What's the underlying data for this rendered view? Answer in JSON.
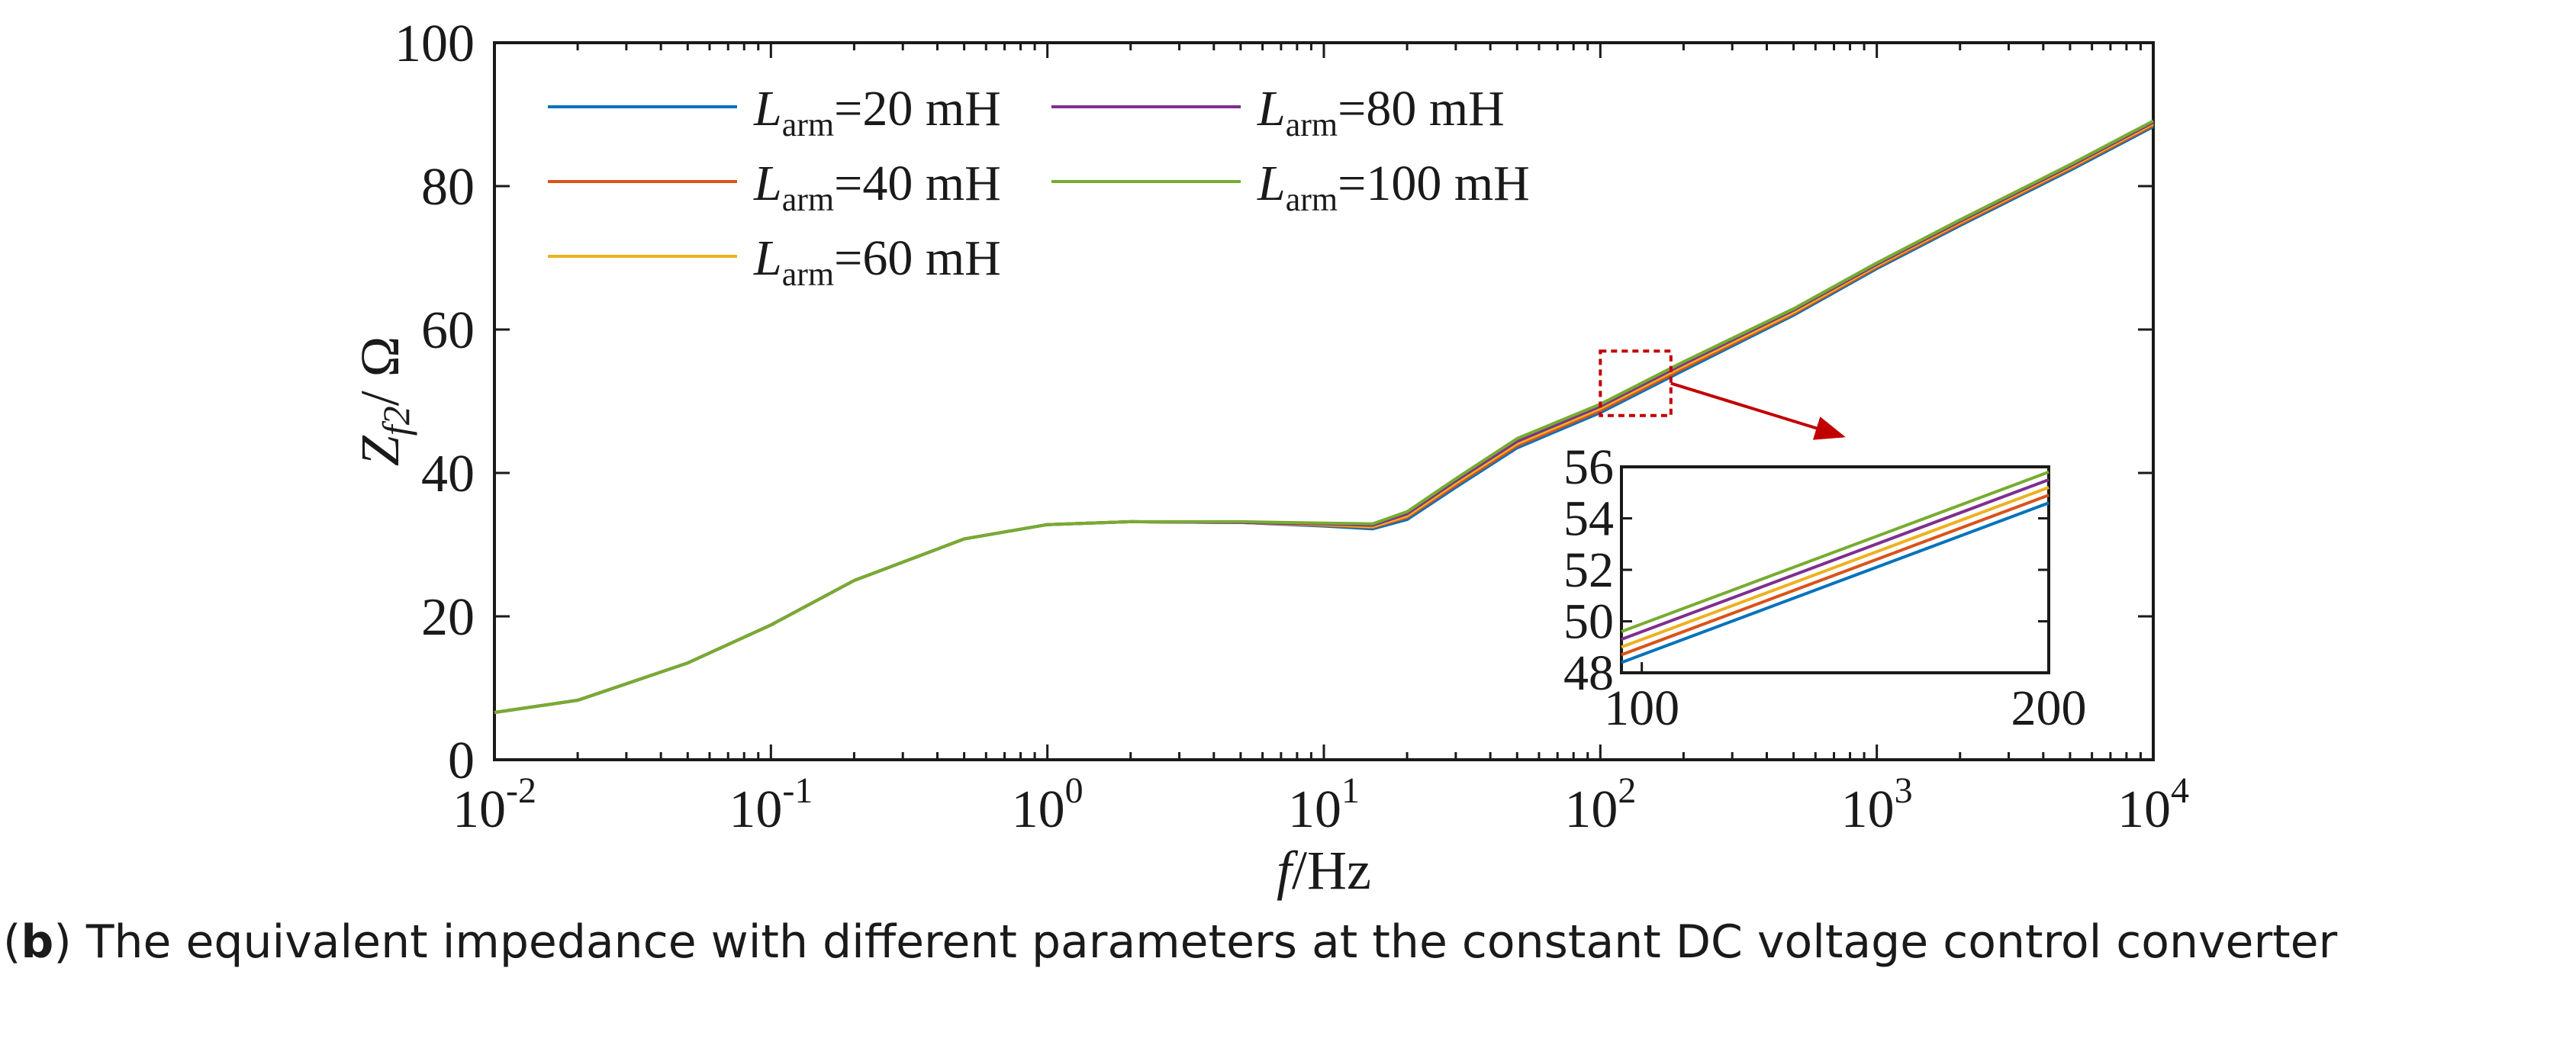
{
  "caption": {
    "label": "b",
    "text": ") The equivalent impedance with different parameters at the constant DC voltage control converter"
  },
  "chart_data": [
    {
      "type": "line",
      "x_scale": "log",
      "xlim": [
        0.01,
        10000
      ],
      "ylim": [
        0,
        100
      ],
      "xlabel": {
        "italic": "f",
        "rest": "/Hz"
      },
      "ylabel": {
        "main": "Z",
        "sub": "f2",
        "rest": "/ Ω"
      },
      "x_ticks": [
        0.01,
        0.1,
        1,
        10,
        100,
        1000,
        10000
      ],
      "x_tick_labels": [
        {
          "base": "10",
          "exp": "-2"
        },
        {
          "base": "10",
          "exp": "-1"
        },
        {
          "base": "10",
          "exp": "0"
        },
        {
          "base": "10",
          "exp": "1"
        },
        {
          "base": "10",
          "exp": "2"
        },
        {
          "base": "10",
          "exp": "3"
        },
        {
          "base": "10",
          "exp": "4"
        }
      ],
      "y_ticks": [
        0,
        20,
        40,
        60,
        80,
        100
      ],
      "y_tick_labels": [
        "0",
        "20",
        "40",
        "60",
        "80",
        "100"
      ],
      "grid": false,
      "legend_position": "top-left",
      "x": [
        0.01,
        0.02,
        0.05,
        0.1,
        0.2,
        0.5,
        1,
        2,
        5,
        10,
        15,
        20,
        30,
        50,
        100,
        200,
        500,
        1000,
        2000,
        5000,
        10000
      ],
      "series": [
        {
          "name": {
            "sym": "L",
            "sub": "arm",
            "val": "=20 mH"
          },
          "color": "#0072BD",
          "values": [
            6.6,
            8.3,
            13.5,
            18.8,
            25.0,
            30.8,
            32.8,
            33.2,
            33.1,
            32.6,
            32.2,
            33.5,
            38.0,
            43.5,
            48.4,
            54.3,
            62.0,
            68.5,
            74.5,
            82.2,
            88.3
          ]
        },
        {
          "name": {
            "sym": "L",
            "sub": "arm",
            "val": "=40 mH"
          },
          "color": "#D95319",
          "values": [
            6.6,
            8.3,
            13.5,
            18.8,
            25.0,
            30.8,
            32.8,
            33.2,
            33.1,
            32.7,
            32.4,
            33.8,
            38.3,
            43.8,
            48.7,
            54.6,
            62.2,
            68.7,
            74.7,
            82.4,
            88.5
          ]
        },
        {
          "name": {
            "sym": "L",
            "sub": "arm",
            "val": "=60 mH"
          },
          "color": "#EDB120",
          "values": [
            6.6,
            8.3,
            13.5,
            18.8,
            25.0,
            30.8,
            32.8,
            33.2,
            33.1,
            32.8,
            32.5,
            34.0,
            38.6,
            44.1,
            49.0,
            54.9,
            62.4,
            68.9,
            74.9,
            82.6,
            88.7
          ]
        },
        {
          "name": {
            "sym": "L",
            "sub": "arm",
            "val": "=80 mH"
          },
          "color": "#7E2F8E",
          "values": [
            6.6,
            8.3,
            13.5,
            18.8,
            25.0,
            30.8,
            32.8,
            33.2,
            33.1,
            32.9,
            32.7,
            34.3,
            38.9,
            44.4,
            49.3,
            55.2,
            62.7,
            69.1,
            75.1,
            82.8,
            88.9
          ]
        },
        {
          "name": {
            "sym": "L",
            "sub": "arm",
            "val": "=100 mH"
          },
          "color": "#77AC30",
          "values": [
            6.6,
            8.3,
            13.5,
            18.8,
            25.0,
            30.8,
            32.8,
            33.2,
            33.2,
            33.0,
            32.9,
            34.6,
            39.2,
            44.8,
            49.6,
            55.5,
            62.9,
            69.3,
            75.3,
            83.0,
            89.1
          ]
        }
      ],
      "zoom_box": {
        "xlim": [
          100,
          180
        ],
        "ylim": [
          48,
          57
        ],
        "color": "#C00000"
      }
    },
    {
      "type": "line",
      "x_scale": "linear",
      "xlim": [
        95,
        200
      ],
      "ylim": [
        48,
        56
      ],
      "x_ticks": [
        100,
        200
      ],
      "x_tick_labels": [
        "100",
        "200"
      ],
      "y_ticks": [
        48,
        50,
        52,
        54,
        56
      ],
      "y_tick_labels": [
        "48",
        "50",
        "52",
        "54",
        "56"
      ],
      "grid": false,
      "x": [
        95,
        200
      ],
      "series": [
        {
          "color": "#0072BD",
          "values": [
            48.4,
            54.6
          ]
        },
        {
          "color": "#D95319",
          "values": [
            48.7,
            54.9
          ]
        },
        {
          "color": "#EDB120",
          "values": [
            49.0,
            55.2
          ]
        },
        {
          "color": "#7E2F8E",
          "values": [
            49.3,
            55.5
          ]
        },
        {
          "color": "#77AC30",
          "values": [
            49.6,
            55.8
          ]
        }
      ]
    }
  ]
}
